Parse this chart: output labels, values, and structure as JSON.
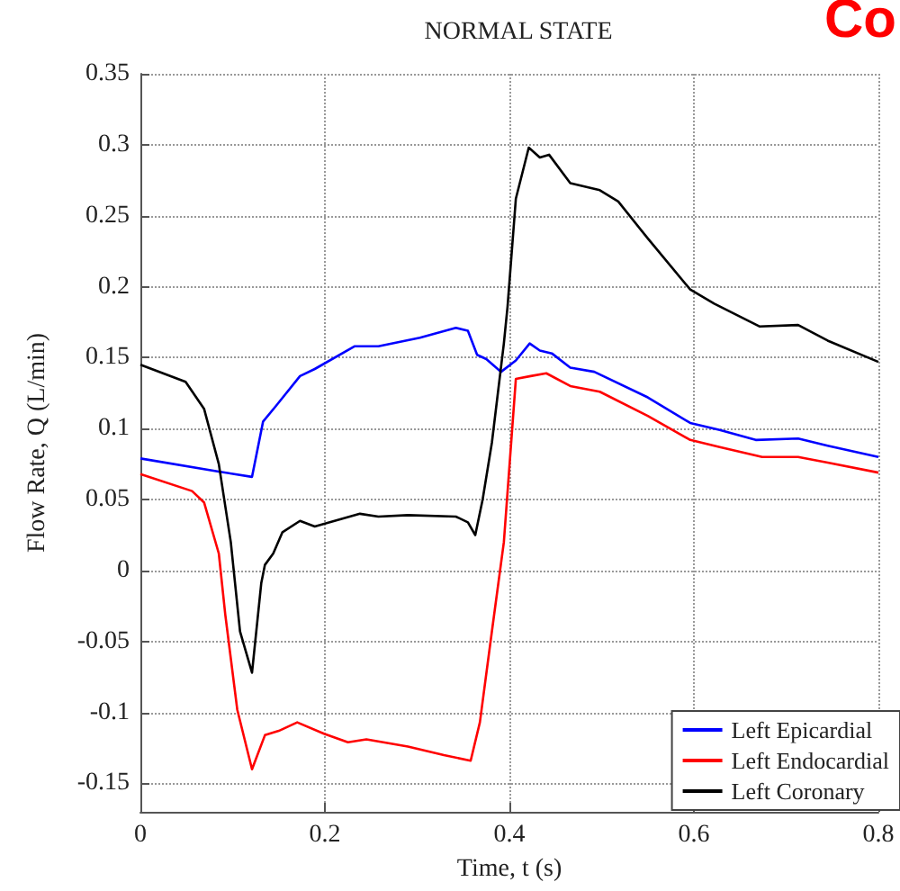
{
  "chart_data": {
    "type": "line",
    "title": "NORMAL STATE",
    "xlabel": "Time, t (s)",
    "ylabel": "Flow Rate, Q (L/min)",
    "annotations": [
      "Co"
    ],
    "xlim": [
      0,
      0.8
    ],
    "xticks": [
      0,
      0.2,
      0.4,
      0.6,
      0.8
    ],
    "ylim": [
      -0.17,
      0.35
    ],
    "yticks": [
      -0.15,
      -0.1,
      -0.05,
      0,
      0.05,
      0.1,
      0.15,
      0.2,
      0.25,
      0.3,
      0.35
    ],
    "grid": true,
    "legend": "bottom right",
    "marker": "none",
    "line_style": "solid",
    "series": [
      {
        "name": "Left Epicardial",
        "color": "#0000ff",
        "x": [
          0,
          0.082,
          0.121,
          0.133,
          0.147,
          0.173,
          0.189,
          0.232,
          0.258,
          0.303,
          0.342,
          0.355,
          0.365,
          0.375,
          0.391,
          0.407,
          0.422,
          0.433,
          0.446,
          0.466,
          0.492,
          0.55,
          0.596,
          0.628,
          0.667,
          0.713,
          0.745,
          0.8
        ],
        "values": [
          0.079,
          0.07,
          0.066,
          0.105,
          0.116,
          0.137,
          0.142,
          0.158,
          0.158,
          0.164,
          0.171,
          0.169,
          0.152,
          0.149,
          0.14,
          0.148,
          0.16,
          0.155,
          0.153,
          0.143,
          0.14,
          0.122,
          0.104,
          0.099,
          0.092,
          0.093,
          0.088,
          0.08
        ]
      },
      {
        "name": "Left Endocardial",
        "color": "#ff0000",
        "x": [
          0,
          0.056,
          0.069,
          0.085,
          0.092,
          0.105,
          0.121,
          0.135,
          0.15,
          0.17,
          0.199,
          0.225,
          0.245,
          0.29,
          0.329,
          0.358,
          0.368,
          0.381,
          0.394,
          0.407,
          0.423,
          0.44,
          0.466,
          0.498,
          0.55,
          0.596,
          0.628,
          0.674,
          0.713,
          0.745,
          0.8
        ],
        "values": [
          0.068,
          0.056,
          0.048,
          0.012,
          -0.031,
          -0.098,
          -0.14,
          -0.116,
          -0.113,
          -0.107,
          -0.115,
          -0.121,
          -0.119,
          -0.124,
          -0.13,
          -0.134,
          -0.107,
          -0.043,
          0.02,
          0.135,
          0.137,
          0.139,
          0.13,
          0.126,
          0.109,
          0.092,
          0.087,
          0.08,
          0.08,
          0.076,
          0.069
        ]
      },
      {
        "name": "Left Coronary",
        "color": "#000000",
        "x": [
          0,
          0.049,
          0.069,
          0.085,
          0.098,
          0.108,
          0.121,
          0.131,
          0.135,
          0.144,
          0.154,
          0.173,
          0.189,
          0.238,
          0.258,
          0.29,
          0.342,
          0.355,
          0.363,
          0.371,
          0.381,
          0.394,
          0.398,
          0.407,
          0.421,
          0.433,
          0.443,
          0.466,
          0.498,
          0.518,
          0.55,
          0.596,
          0.622,
          0.671,
          0.713,
          0.745,
          0.8
        ],
        "values": [
          0.145,
          0.133,
          0.114,
          0.075,
          0.02,
          -0.043,
          -0.072,
          -0.009,
          0.004,
          0.012,
          0.027,
          0.035,
          0.031,
          0.04,
          0.038,
          0.039,
          0.038,
          0.034,
          0.025,
          0.05,
          0.09,
          0.16,
          0.186,
          0.262,
          0.298,
          0.291,
          0.293,
          0.273,
          0.268,
          0.26,
          0.234,
          0.198,
          0.188,
          0.172,
          0.173,
          0.162,
          0.147
        ]
      }
    ]
  }
}
